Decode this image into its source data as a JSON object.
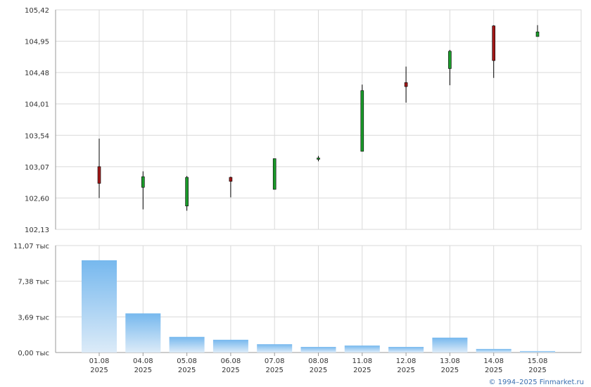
{
  "colors": {
    "up": "#1a9a2a",
    "down": "#a11818",
    "wick": "#000000",
    "grid": "#d9d9d9",
    "axis": "#999999",
    "volume_top": "#76b8ee",
    "volume_bottom": "#dcebf8"
  },
  "credit": "© 1994–2025 Finmarket.ru",
  "chart_data": [
    {
      "type": "candlestick",
      "ylim": [
        102.13,
        105.42
      ],
      "y_ticks": [
        "105,42",
        "104,95",
        "104,48",
        "104,01",
        "103,54",
        "103,07",
        "102,60",
        "102,13"
      ],
      "x_labels": [
        {
          "day": "01.08",
          "year": "2025"
        },
        {
          "day": "04.08",
          "year": "2025"
        },
        {
          "day": "05.08",
          "year": "2025"
        },
        {
          "day": "06.08",
          "year": "2025"
        },
        {
          "day": "07.08",
          "year": "2025"
        },
        {
          "day": "08.08",
          "year": "2025"
        },
        {
          "day": "11.08",
          "year": "2025"
        },
        {
          "day": "12.08",
          "year": "2025"
        },
        {
          "day": "13.08",
          "year": "2025"
        },
        {
          "day": "14.08",
          "year": "2025"
        },
        {
          "day": "15.08",
          "year": "2025"
        }
      ],
      "candles": [
        {
          "date": "01.08",
          "open": 103.07,
          "high": 103.49,
          "low": 102.6,
          "close": 102.82
        },
        {
          "date": "04.08",
          "open": 102.76,
          "high": 103.0,
          "low": 102.43,
          "close": 102.92
        },
        {
          "date": "05.08",
          "open": 102.48,
          "high": 102.93,
          "low": 102.41,
          "close": 102.91
        },
        {
          "date": "06.08",
          "open": 102.91,
          "high": 102.92,
          "low": 102.61,
          "close": 102.85
        },
        {
          "date": "07.08",
          "open": 102.73,
          "high": 103.19,
          "low": 102.73,
          "close": 103.19
        },
        {
          "date": "08.08",
          "open": 103.18,
          "high": 103.23,
          "low": 103.15,
          "close": 103.2
        },
        {
          "date": "11.08",
          "open": 103.3,
          "high": 104.3,
          "low": 103.3,
          "close": 104.21
        },
        {
          "date": "12.08",
          "open": 104.33,
          "high": 104.57,
          "low": 104.03,
          "close": 104.27
        },
        {
          "date": "13.08",
          "open": 104.54,
          "high": 104.82,
          "low": 104.29,
          "close": 104.8
        },
        {
          "date": "14.08",
          "open": 105.18,
          "high": 105.19,
          "low": 104.4,
          "close": 104.66
        },
        {
          "date": "15.08",
          "open": 105.02,
          "high": 105.19,
          "low": 105.02,
          "close": 105.09
        }
      ]
    },
    {
      "type": "bar",
      "ylim": [
        0,
        11.07
      ],
      "y_ticks": [
        "11,07 тыс",
        "7,38 тыс",
        "3,69 тыс",
        "0,00 тыс"
      ],
      "categories": [
        "01.08",
        "04.08",
        "05.08",
        "06.08",
        "07.08",
        "08.08",
        "11.08",
        "12.08",
        "13.08",
        "14.08",
        "15.08"
      ],
      "values": [
        9.55,
        4.05,
        1.62,
        1.32,
        0.86,
        0.58,
        0.72,
        0.58,
        1.54,
        0.37,
        0.15
      ]
    }
  ]
}
